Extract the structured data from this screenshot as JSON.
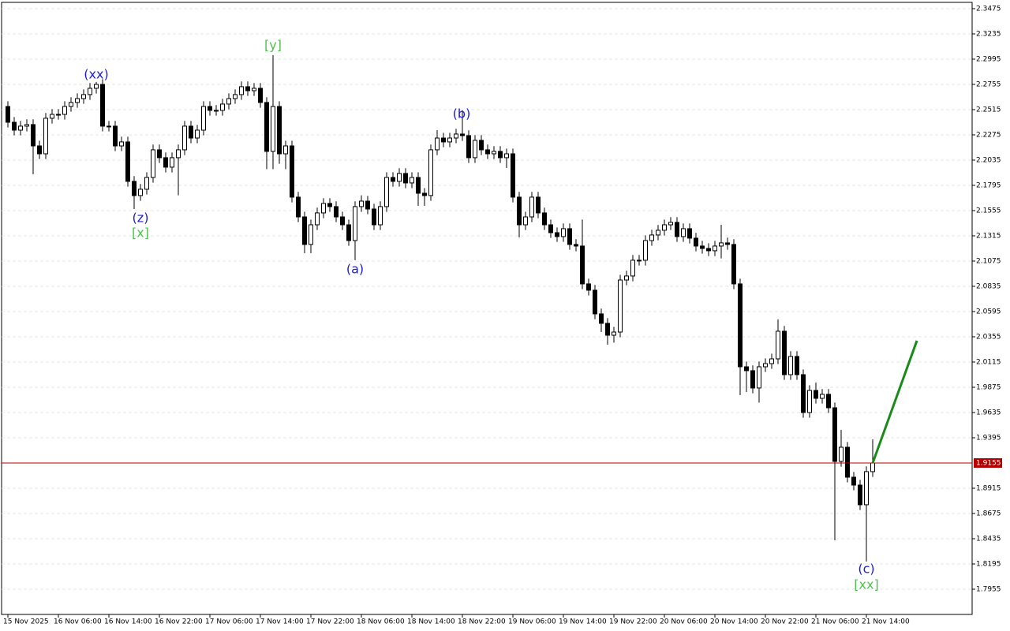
{
  "chart_data": {
    "type": "candlestick",
    "categories": [
      "15 Nov 2025",
      null,
      null,
      null,
      null,
      null,
      null,
      null,
      "16 Nov 06:00",
      null,
      null,
      null,
      null,
      null,
      null,
      null,
      "16 Nov 14:00",
      null,
      null,
      null,
      null,
      null,
      null,
      null,
      "16 Nov 22:00",
      null,
      null,
      null,
      null,
      null,
      null,
      null,
      "17 Nov 06:00",
      null,
      null,
      null,
      null,
      null,
      null,
      null,
      "17 Nov 14:00",
      null,
      null,
      null,
      null,
      null,
      null,
      null,
      "17 Nov 22:00",
      null,
      null,
      null,
      null,
      null,
      null,
      null,
      "18 Nov 06:00",
      null,
      null,
      null,
      null,
      null,
      null,
      null,
      "18 Nov 14:00",
      null,
      null,
      null,
      null,
      null,
      null,
      null,
      "18 Nov 22:00",
      null,
      null,
      null,
      null,
      null,
      null,
      null,
      "19 Nov 06:00",
      null,
      null,
      null,
      null,
      null,
      null,
      null,
      "19 Nov 14:00",
      null,
      null,
      null,
      null,
      null,
      null,
      null,
      "19 Nov 22:00",
      null,
      null,
      null,
      null,
      null,
      null,
      null,
      "20 Nov 06:00",
      null,
      null,
      null,
      null,
      null,
      null,
      null,
      "20 Nov 14:00",
      null,
      null,
      null,
      null,
      null,
      null,
      null,
      "20 Nov 22:00",
      null,
      null,
      null,
      null,
      null,
      null,
      null,
      "21 Nov 06:00",
      null,
      null,
      null,
      null,
      null,
      null,
      null,
      "21 Nov 14:00",
      null
    ],
    "open": [
      2.2545,
      2.2395,
      2.232,
      2.2358,
      2.2373,
      2.217,
      2.2095,
      2.2433,
      2.247,
      2.247,
      2.2545,
      2.2583,
      2.262,
      2.2658,
      2.2718,
      2.2755,
      2.2358,
      2.2358,
      2.217,
      2.2208,
      2.1833,
      2.1698,
      2.1758,
      2.187,
      2.2133,
      2.2058,
      2.1968,
      2.2058,
      2.2133,
      2.2358,
      2.2245,
      2.232,
      2.2545,
      2.2508,
      2.2508,
      2.2568,
      2.262,
      2.2658,
      2.2733,
      2.2695,
      2.2718,
      2.2583,
      2.2118,
      2.2545,
      2.2095,
      2.217,
      2.1683,
      2.1495,
      2.1233,
      2.142,
      2.1533,
      2.1623,
      2.1593,
      2.1495,
      2.142,
      2.127,
      2.1593,
      2.1645,
      2.157,
      2.142,
      2.1593,
      2.187,
      2.1833,
      2.1908,
      2.1818,
      2.187,
      2.172,
      2.1698,
      2.2133,
      2.2245,
      2.2208,
      2.2245,
      2.2283,
      2.2268,
      2.2058,
      2.2223,
      2.2133,
      2.2095,
      2.2118,
      2.2058,
      2.2095,
      2.1683,
      2.142,
      2.1495,
      2.1683,
      2.1533,
      2.142,
      2.1345,
      2.1308,
      2.1383,
      2.1233,
      2.1218,
      2.0858,
      2.0798,
      2.0573,
      2.0483,
      2.037,
      2.04,
      2.0895,
      2.0933,
      2.1083,
      2.1083,
      2.127,
      2.1323,
      2.1368,
      2.142,
      2.1443,
      2.1308,
      2.1383,
      2.1293,
      2.1218,
      2.1195,
      2.1173,
      2.1218,
      2.1248,
      2.1233,
      2.0858,
      2.007,
      2.0033,
      1.9868,
      2.007,
      2.01,
      2.0145,
      2.0408,
      1.9995,
      2.0168,
      1.9995,
      1.9635,
      1.9845,
      1.977,
      1.9808,
      1.968,
      1.917,
      1.9305,
      1.902,
      1.8945,
      1.8758,
      1.9073
    ],
    "high": [
      2.2595,
      2.2445,
      2.2408,
      2.2423,
      2.2423,
      2.222,
      2.2483,
      2.252,
      2.252,
      2.2595,
      2.2633,
      2.267,
      2.2708,
      2.2768,
      2.2778,
      2.2805,
      2.2408,
      2.2408,
      2.2258,
      2.2258,
      2.1883,
      2.1808,
      2.192,
      2.2183,
      2.2183,
      2.2108,
      2.2108,
      2.2183,
      2.2408,
      2.2408,
      2.237,
      2.2595,
      2.2595,
      2.2558,
      2.2618,
      2.267,
      2.2708,
      2.2783,
      2.2783,
      2.2768,
      2.2768,
      2.2633,
      2.3033,
      2.2595,
      2.222,
      2.222,
      2.1733,
      2.1545,
      2.147,
      2.1583,
      2.1673,
      2.1673,
      2.1643,
      2.1545,
      2.147,
      2.1643,
      2.17,
      2.1695,
      2.162,
      2.1643,
      2.192,
      2.192,
      2.1958,
      2.1958,
      2.192,
      2.192,
      2.177,
      2.2183,
      2.232,
      2.2295,
      2.2295,
      2.2333,
      2.2508,
      2.2318,
      2.2273,
      2.2273,
      2.2183,
      2.2168,
      2.2168,
      2.2145,
      2.2145,
      2.1733,
      2.1545,
      2.1733,
      2.1733,
      2.1583,
      2.147,
      2.1395,
      2.1433,
      2.1433,
      2.1283,
      2.147,
      2.0908,
      2.0848,
      2.0623,
      2.0533,
      2.045,
      2.0945,
      2.0983,
      2.1133,
      2.1133,
      2.132,
      2.1373,
      2.1418,
      2.147,
      2.1493,
      2.1493,
      2.1433,
      2.1433,
      2.1343,
      2.1268,
      2.1245,
      2.1268,
      2.142,
      2.1298,
      2.1283,
      2.0908,
      2.012,
      2.0083,
      2.012,
      2.015,
      2.0195,
      2.052,
      2.0458,
      2.0218,
      2.0218,
      2.0045,
      1.9895,
      1.992,
      1.9858,
      1.9858,
      1.973,
      1.947,
      1.9355,
      1.907,
      1.8995,
      1.9123,
      1.938
    ],
    "low": [
      2.2345,
      2.227,
      2.227,
      2.2308,
      2.19,
      2.2045,
      2.2045,
      2.2383,
      2.242,
      2.242,
      2.2495,
      2.2533,
      2.257,
      2.2608,
      2.2668,
      2.2308,
      2.2308,
      2.212,
      2.212,
      2.1783,
      2.157,
      2.1648,
      2.1708,
      2.182,
      2.2008,
      2.1918,
      2.1918,
      2.17,
      2.2083,
      2.2195,
      2.2195,
      2.227,
      2.2458,
      2.2458,
      2.2458,
      2.2518,
      2.257,
      2.2608,
      2.2645,
      2.2645,
      2.2533,
      2.195,
      2.195,
      2.2,
      2.195,
      2.1633,
      2.1445,
      2.115,
      2.115,
      2.137,
      2.1483,
      2.1543,
      2.1445,
      2.137,
      2.122,
      2.1083,
      2.1543,
      2.152,
      2.137,
      2.137,
      2.1543,
      2.1783,
      2.1783,
      2.1768,
      2.1768,
      2.16,
      2.16,
      2.1648,
      2.2083,
      2.2158,
      2.2158,
      2.2195,
      2.2218,
      2.2008,
      2.2008,
      2.2083,
      2.2045,
      2.2045,
      2.2008,
      2.196,
      2.1633,
      2.13,
      2.137,
      2.1445,
      2.1483,
      2.137,
      2.1295,
      2.1258,
      2.1258,
      2.1183,
      2.1168,
      2.0808,
      2.0748,
      2.0523,
      2.04,
      2.028,
      2.03,
      2.035,
      2.0845,
      2.0883,
      2.1033,
      2.1033,
      2.122,
      2.1273,
      2.1318,
      2.137,
      2.1258,
      2.1258,
      2.1243,
      2.1168,
      2.1145,
      2.1123,
      2.1123,
      2.11,
      2.1183,
      2.0808,
      1.98,
      1.983,
      1.9818,
      1.973,
      2.002,
      2.005,
      2.0095,
      1.9945,
      1.9945,
      1.9945,
      1.9585,
      1.9585,
      1.972,
      1.972,
      1.963,
      1.842,
      1.912,
      1.897,
      1.8895,
      1.8708,
      1.8218,
      1.9023
    ],
    "close": [
      2.2395,
      2.232,
      2.2358,
      2.2373,
      2.217,
      2.2095,
      2.2433,
      2.247,
      2.247,
      2.2545,
      2.2583,
      2.262,
      2.2658,
      2.2718,
      2.2755,
      2.2358,
      2.2358,
      2.217,
      2.2208,
      2.1833,
      2.1698,
      2.1758,
      2.187,
      2.2133,
      2.2058,
      2.1968,
      2.2058,
      2.2133,
      2.2358,
      2.2245,
      2.232,
      2.2545,
      2.2508,
      2.2508,
      2.2568,
      2.262,
      2.2658,
      2.2733,
      2.2695,
      2.2718,
      2.2583,
      2.2118,
      2.2545,
      2.2095,
      2.217,
      2.1683,
      2.1495,
      2.1233,
      2.142,
      2.1533,
      2.1623,
      2.1593,
      2.1495,
      2.142,
      2.127,
      2.1593,
      2.1645,
      2.157,
      2.142,
      2.1593,
      2.187,
      2.1833,
      2.1908,
      2.1818,
      2.187,
      2.172,
      2.1698,
      2.2133,
      2.2245,
      2.2208,
      2.2245,
      2.2283,
      2.2268,
      2.2058,
      2.2223,
      2.2133,
      2.2095,
      2.2118,
      2.2058,
      2.2095,
      2.1683,
      2.142,
      2.1495,
      2.1683,
      2.1533,
      2.142,
      2.1345,
      2.1308,
      2.1383,
      2.1233,
      2.1218,
      2.0858,
      2.0798,
      2.0573,
      2.0483,
      2.037,
      2.04,
      2.0895,
      2.0933,
      2.1083,
      2.1083,
      2.127,
      2.1323,
      2.1368,
      2.142,
      2.1443,
      2.1308,
      2.1383,
      2.1293,
      2.1218,
      2.1195,
      2.1173,
      2.1218,
      2.1248,
      2.1233,
      2.0858,
      2.007,
      2.0033,
      1.9868,
      2.007,
      2.01,
      2.0145,
      2.0408,
      1.9995,
      2.0168,
      1.9995,
      1.9635,
      1.9845,
      1.977,
      1.9808,
      1.968,
      1.917,
      1.9305,
      1.902,
      1.8945,
      1.8758,
      1.9073,
      1.9155
    ],
    "up_color": "#ffffff",
    "down_color": "#000000",
    "ylim": [
      1.7715,
      2.3535
    ],
    "yticks": [
      2.3475,
      2.3235,
      2.2995,
      2.2755,
      2.2515,
      2.2275,
      2.2035,
      2.1795,
      2.1555,
      2.1315,
      2.1075,
      2.0835,
      2.0595,
      2.0355,
      2.0115,
      1.9875,
      1.9635,
      1.9395,
      1.8915,
      1.8675,
      1.8435,
      1.8195,
      1.7955
    ],
    "grid": true,
    "current_price": 1.9155,
    "current_price_color": "#b40000",
    "projection": {
      "color": "#1a8a1a",
      "values": [
        1.9155,
        2.0318
      ]
    },
    "annotations": [
      {
        "text": "(xx)",
        "color": "#1c1cd8"
      },
      {
        "text": "(z)",
        "color": "#1c1cd8"
      },
      {
        "text": "[x]",
        "color": "#4cc44c"
      },
      {
        "text": "[y]",
        "color": "#4cc44c"
      },
      {
        "text": "(a)",
        "color": "#1c1cd8"
      },
      {
        "text": "(b)",
        "color": "#1c1cd8"
      },
      {
        "text": "(c)",
        "color": "#1c1cd8"
      },
      {
        "text": "[xx]",
        "color": "#4cc44c"
      }
    ]
  }
}
